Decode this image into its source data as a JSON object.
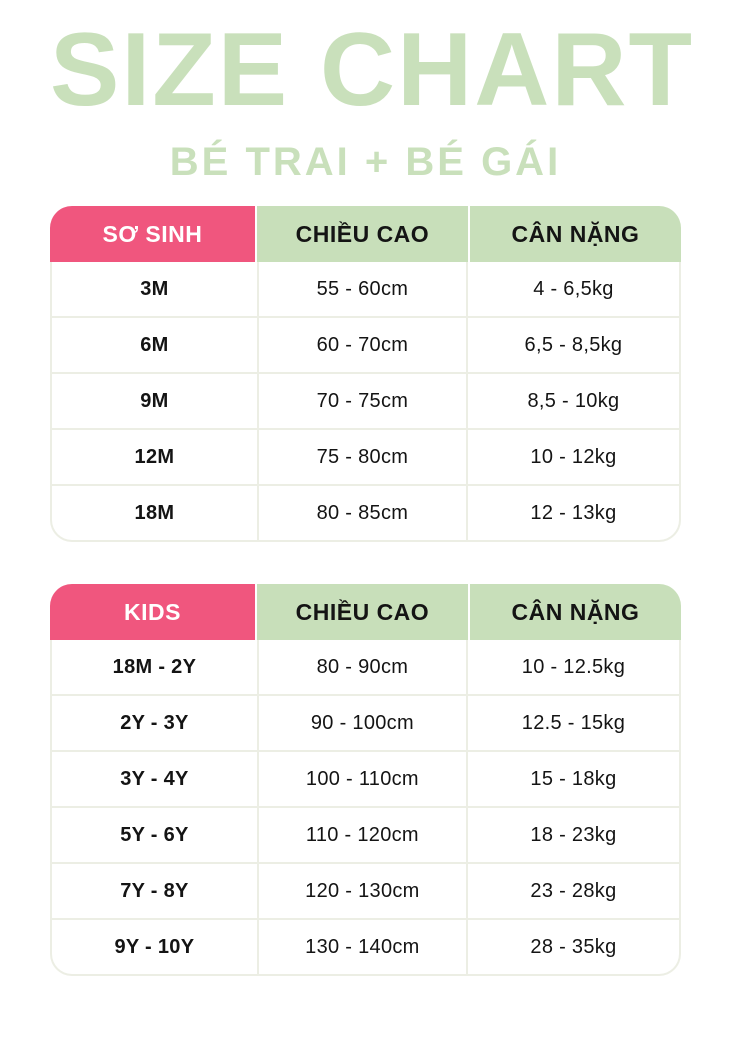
{
  "page": {
    "title": "SIZE CHART",
    "subtitle": "BÉ TRAI + BÉ GÁI"
  },
  "colors": {
    "title_green": "#c9e0bb",
    "header_green": "#c8dfba",
    "header_pink": "#f0567e",
    "divider": "#eceee4",
    "text": "#141414",
    "background": "#ffffff",
    "header_label_text": "#ffffff"
  },
  "chart_data": [
    {
      "type": "table",
      "name": "so-sinh-size-table",
      "columns": [
        "SƠ SINH",
        "CHIỀU CAO",
        "CÂN NẶNG"
      ],
      "rows": [
        [
          "3M",
          "55 - 60cm",
          "4 - 6,5kg"
        ],
        [
          "6M",
          "60 - 70cm",
          "6,5 - 8,5kg"
        ],
        [
          "9M",
          "70 - 75cm",
          "8,5 - 10kg"
        ],
        [
          "12M",
          "75 - 80cm",
          "10 - 12kg"
        ],
        [
          "18M",
          "80 - 85cm",
          "12 - 13kg"
        ]
      ]
    },
    {
      "type": "table",
      "name": "kids-size-table",
      "columns": [
        "KIDS",
        "CHIỀU CAO",
        "CÂN NẶNG"
      ],
      "rows": [
        [
          "18M - 2Y",
          "80 - 90cm",
          "10 - 12.5kg"
        ],
        [
          "2Y - 3Y",
          "90 - 100cm",
          "12.5 - 15kg"
        ],
        [
          "3Y - 4Y",
          "100 - 110cm",
          "15 - 18kg"
        ],
        [
          "5Y - 6Y",
          "110 - 120cm",
          "18 - 23kg"
        ],
        [
          "7Y - 8Y",
          "120 - 130cm",
          "23 - 28kg"
        ],
        [
          "9Y - 10Y",
          "130 - 140cm",
          "28 - 35kg"
        ]
      ]
    }
  ]
}
